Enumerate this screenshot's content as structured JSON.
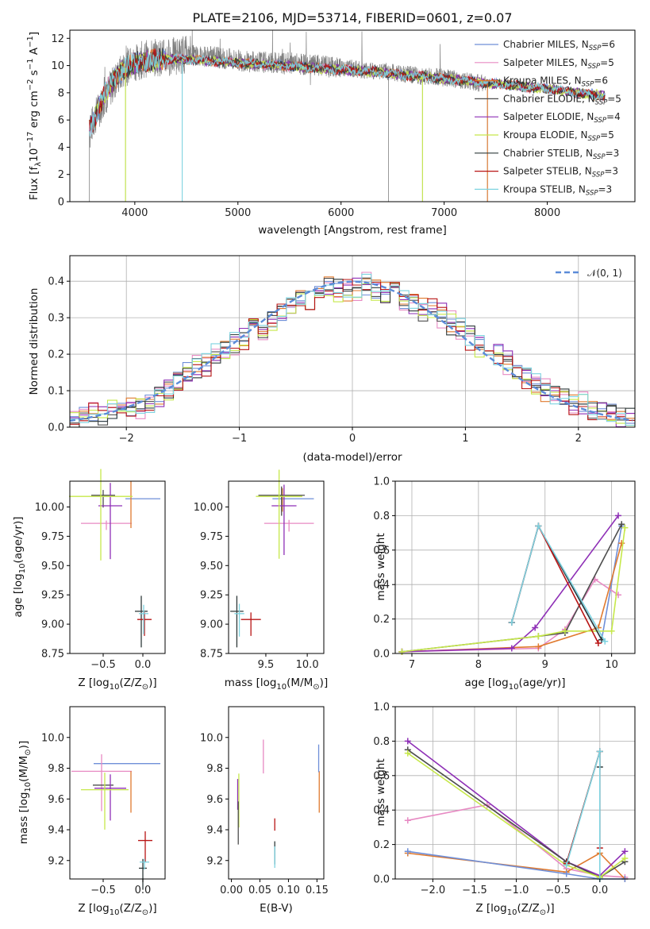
{
  "title": "PLATE=2106, MJD=53714, FIBERID=0601, z=0.07",
  "colors": {
    "Chabrier MILES": "#6f8fd8",
    "Salpeter MILES": "#e78ac3",
    "Kroupa MILES": "#e07a2f",
    "Chabrier ELODIE": "#4d4d4d",
    "Salpeter ELODIE": "#8e2fb6",
    "Kroupa ELODIE": "#c6e84a",
    "Chabrier STELIB": "#2f3a3a",
    "Salpeter STELIB": "#b81414",
    "Kroupa STELIB": "#7ed3e0",
    "data": "#808080"
  },
  "chart_data": [
    {
      "id": "spectrum",
      "type": "line",
      "xlabel": "wavelength [Angstrom, rest frame]",
      "ylabel": "Flux [f",
      "ylabel_sub": "λ",
      "ylabel_mid": "10",
      "ylabel_sup": "−17",
      "ylabel_end": " erg cm",
      "ylabel_sup2": "−2",
      "ylabel_end2": " s",
      "ylabel_sup3": "−1",
      "ylabel_end3": " A",
      "ylabel_sup4": "−1",
      "ylabel_close": "]",
      "xlim": [
        3370,
        8850
      ],
      "ylim": [
        0,
        12.6
      ],
      "xticks": [
        4000,
        5000,
        6000,
        7000,
        8000
      ],
      "yticks": [
        0,
        2,
        4,
        6,
        8,
        10,
        12
      ],
      "data_series": {
        "name": "data",
        "x": [
          3560,
          3600,
          3700,
          3800,
          3900,
          4000,
          4100,
          4200,
          4300,
          4400,
          4500,
          4600,
          4700,
          4800,
          4900,
          5000,
          5100,
          5200,
          5300,
          5400,
          5500,
          5600,
          5700,
          5800,
          5900,
          6000,
          6100,
          6200,
          6300,
          6400,
          6500,
          6600,
          6700,
          6800,
          6900,
          7000,
          7100,
          7200,
          7300,
          7400
        ],
        "y": [
          5.0,
          6.0,
          7.5,
          8.8,
          9.8,
          10.2,
          10.5,
          10.6,
          10.6,
          10.7,
          10.8,
          10.7,
          10.7,
          10.6,
          10.5,
          10.4,
          10.3,
          10.3,
          10.2,
          10.2,
          10.2,
          10.1,
          10.0,
          10.0,
          9.9,
          9.8,
          9.8,
          9.7,
          9.6,
          9.6,
          9.5,
          9.4,
          9.3,
          9.2,
          9.2,
          9.1,
          9.0,
          8.9,
          8.8,
          8.6
        ]
      },
      "model_continuum": {
        "x": [
          3560,
          3600,
          3700,
          3800,
          3900,
          4000,
          4200,
          4400,
          4600,
          4800,
          5000,
          5200,
          5400,
          5600,
          5800,
          6000,
          6200,
          6400,
          6600,
          6800,
          7000,
          7200,
          7400,
          7600,
          7800,
          8000,
          8200,
          8400,
          8550
        ],
        "y": [
          5.3,
          6.0,
          7.8,
          9.0,
          9.8,
          10.2,
          10.4,
          10.5,
          10.4,
          10.3,
          10.2,
          10.1,
          10.0,
          9.9,
          9.8,
          9.7,
          9.6,
          9.5,
          9.3,
          9.2,
          9.0,
          8.9,
          8.7,
          8.6,
          8.4,
          8.3,
          8.1,
          7.9,
          7.8
        ]
      },
      "legend": [
        {
          "label": "Chabrier MILES, N",
          "sub": "SSP",
          "value": "=6"
        },
        {
          "label": "Salpeter MILES, N",
          "sub": "SSP",
          "value": "=5"
        },
        {
          "label": "Kroupa MILES, N",
          "sub": "SSP",
          "value": "=6"
        },
        {
          "label": "Chabrier ELODIE, N",
          "sub": "SSP",
          "value": "=5"
        },
        {
          "label": "Salpeter ELODIE, N",
          "sub": "SSP",
          "value": "=4"
        },
        {
          "label": "Kroupa ELODIE, N",
          "sub": "SSP",
          "value": "=5"
        },
        {
          "label": "Chabrier STELIB, N",
          "sub": "SSP",
          "value": "=3"
        },
        {
          "label": "Salpeter STELIB, N",
          "sub": "SSP",
          "value": "=3"
        },
        {
          "label": "Kroupa STELIB, N",
          "sub": "SSP",
          "value": "=3"
        }
      ]
    },
    {
      "id": "residuals",
      "type": "histogram",
      "xlabel": "(data-model)/error",
      "ylabel": "Normed distribution",
      "xlim": [
        -2.5,
        2.5
      ],
      "ylim": [
        0,
        0.47
      ],
      "xticks": [
        -2,
        -1,
        0,
        1,
        2
      ],
      "yticks": [
        0.0,
        0.1,
        0.2,
        0.3,
        0.4
      ],
      "grid": true,
      "legend_label": "𝒩(0, 1)",
      "legend_position": "top-right",
      "bin_width": 0.1,
      "bin_start": -2.5,
      "series_values": [
        [
          0.02,
          0.03,
          0.03,
          0.04,
          0.04,
          0.05,
          0.05,
          0.06,
          0.07,
          0.08,
          0.1,
          0.13,
          0.15,
          0.16,
          0.18,
          0.2,
          0.21,
          0.23,
          0.25,
          0.26,
          0.28,
          0.3,
          0.32,
          0.34,
          0.35,
          0.37,
          0.38,
          0.39,
          0.38,
          0.37,
          0.38,
          0.39,
          0.38,
          0.37,
          0.36,
          0.35,
          0.34,
          0.33,
          0.32,
          0.31,
          0.28,
          0.27,
          0.25,
          0.23,
          0.21,
          0.2,
          0.18,
          0.15,
          0.14,
          0.12,
          0.1,
          0.09,
          0.08,
          0.07,
          0.06,
          0.05,
          0.05,
          0.04,
          0.03,
          0.03
        ],
        [
          0.02,
          0.03,
          0.04,
          0.03,
          0.05,
          0.04,
          0.06,
          0.05,
          0.07,
          0.09,
          0.1,
          0.12,
          0.14,
          0.17,
          0.16,
          0.19,
          0.21,
          0.22,
          0.24,
          0.27,
          0.26,
          0.29,
          0.31,
          0.33,
          0.36,
          0.35,
          0.37,
          0.38,
          0.36,
          0.38,
          0.37,
          0.4,
          0.37,
          0.36,
          0.37,
          0.34,
          0.35,
          0.32,
          0.33,
          0.3,
          0.29,
          0.26,
          0.24,
          0.22,
          0.22,
          0.19,
          0.17,
          0.16,
          0.13,
          0.12,
          0.11,
          0.08,
          0.09,
          0.06,
          0.07,
          0.05,
          0.04,
          0.04,
          0.03,
          0.02
        ]
      ]
    },
    {
      "id": "age-vs-Z",
      "type": "errorbar",
      "xlabel": "Z [log",
      "xlabel_sub": "10",
      "xlabel_end": "(Z/Z",
      "xlabel_sub2": "⊙",
      "xlabel_close": ")]",
      "ylabel": "age  [log",
      "ylabel_sub": "10",
      "ylabel_end": "(age/yr)]",
      "xlim": [
        -0.92,
        0.28
      ],
      "ylim": [
        8.75,
        10.22
      ],
      "xticks": [
        -0.5,
        0.0
      ],
      "yticks": [
        8.75,
        9.0,
        9.25,
        9.5,
        9.75,
        10.0
      ],
      "points": [
        {
          "s": "Chabrier MILES",
          "x": 0.0,
          "y": 10.07,
          "xerr": 0.22,
          "yerr": 0.0
        },
        {
          "s": "Salpeter MILES",
          "x": -0.46,
          "y": 9.86,
          "xerr": 0.32,
          "yerr": 0.08
        },
        {
          "s": "Kroupa MILES",
          "x": -0.15,
          "y": 10.1,
          "xerr": 0.0,
          "yerr": 0.4
        },
        {
          "s": "Chabrier ELODIE",
          "x": -0.5,
          "y": 10.1,
          "xerr": 0.15,
          "yerr": 0.15
        },
        {
          "s": "Salpeter ELODIE",
          "x": -0.41,
          "y": 10.01,
          "xerr": 0.15,
          "yerr": 0.65
        },
        {
          "s": "Kroupa ELODIE",
          "x": -0.53,
          "y": 10.09,
          "xerr": 0.4,
          "yerr": 0.78
        },
        {
          "s": "Chabrier STELIB",
          "x": -0.02,
          "y": 9.11,
          "xerr": 0.08,
          "yerr": 0.44
        },
        {
          "s": "Salpeter STELIB",
          "x": 0.02,
          "y": 9.04,
          "xerr": 0.09,
          "yerr": 0.2
        },
        {
          "s": "Kroupa STELIB",
          "x": 0.01,
          "y": 9.09,
          "xerr": 0.06,
          "yerr": 0.25
        }
      ]
    },
    {
      "id": "age-vs-mass",
      "type": "errorbar",
      "xlabel": "mass [log",
      "xlabel_sub": "10",
      "xlabel_end": "(M/M",
      "xlabel_sub2": "⊙",
      "xlabel_close": ")]",
      "xlim": [
        9.05,
        10.2
      ],
      "ylim": [
        8.75,
        10.22
      ],
      "xticks": [
        9.5,
        10.0
      ],
      "yticks": [
        8.75,
        9.0,
        9.25,
        9.5,
        9.75,
        10.0
      ],
      "points": [
        {
          "s": "Chabrier MILES",
          "x": 9.83,
          "y": 10.07,
          "xerr": 0.25,
          "yerr": 0.0
        },
        {
          "s": "Salpeter MILES",
          "x": 9.78,
          "y": 9.86,
          "xerr": 0.3,
          "yerr": 0.1
        },
        {
          "s": "Kroupa MILES",
          "x": 9.7,
          "y": 10.1,
          "xerr": 0.0,
          "yerr": 0.2
        },
        {
          "s": "Chabrier ELODIE",
          "x": 9.69,
          "y": 10.1,
          "xerr": 0.28,
          "yerr": 0.25
        },
        {
          "s": "Salpeter ELODIE",
          "x": 9.72,
          "y": 10.01,
          "xerr": 0.15,
          "yerr": 0.6
        },
        {
          "s": "Kroupa ELODIE",
          "x": 9.66,
          "y": 10.09,
          "xerr": 0.28,
          "yerr": 0.76
        },
        {
          "s": "Chabrier STELIB",
          "x": 9.15,
          "y": 9.11,
          "xerr": 0.08,
          "yerr": 0.44
        },
        {
          "s": "Salpeter STELIB",
          "x": 9.32,
          "y": 9.04,
          "xerr": 0.12,
          "yerr": 0.2
        },
        {
          "s": "Kroupa STELIB",
          "x": 9.18,
          "y": 9.09,
          "xerr": 0.06,
          "yerr": 0.28
        }
      ]
    },
    {
      "id": "weight-vs-age",
      "type": "line",
      "xlabel": "age  [log",
      "xlabel_sub": "10",
      "xlabel_end": "(age/yr)]",
      "ylabel": "mass weight",
      "xlim": [
        6.75,
        10.35
      ],
      "ylim": [
        0,
        1.0
      ],
      "xticks": [
        7,
        8,
        9,
        10
      ],
      "yticks": [
        0.0,
        0.2,
        0.4,
        0.6,
        0.8,
        1.0
      ],
      "grid": true,
      "series": [
        {
          "s": "Chabrier MILES",
          "x": [
            8.5,
            8.9,
            9.85,
            10.15
          ],
          "y": [
            0.18,
            0.74,
            0.08,
            0.74
          ]
        },
        {
          "s": "Salpeter MILES",
          "x": [
            6.85,
            8.9,
            9.3,
            9.75,
            10.1
          ],
          "y": [
            0.01,
            0.03,
            0.14,
            0.43,
            0.34
          ]
        },
        {
          "s": "Kroupa MILES",
          "x": [
            6.85,
            8.9,
            9.8,
            10.15
          ],
          "y": [
            0.01,
            0.04,
            0.15,
            0.64
          ]
        },
        {
          "s": "Chabrier ELODIE",
          "x": [
            6.85,
            8.9,
            9.3,
            10.15
          ],
          "y": [
            0.01,
            0.1,
            0.12,
            0.75
          ]
        },
        {
          "s": "Salpeter ELODIE",
          "x": [
            6.85,
            8.5,
            8.85,
            10.1
          ],
          "y": [
            0.01,
            0.03,
            0.15,
            0.8
          ]
        },
        {
          "s": "Kroupa ELODIE",
          "x": [
            6.85,
            8.9,
            9.3,
            10.0,
            10.2
          ],
          "y": [
            0.01,
            0.1,
            0.13,
            0.13,
            0.73
          ]
        },
        {
          "s": "Chabrier STELIB",
          "x": [
            8.5,
            8.9,
            9.85
          ],
          "y": [
            0.18,
            0.74,
            0.08
          ]
        },
        {
          "s": "Salpeter STELIB",
          "x": [
            8.5,
            8.9,
            9.8
          ],
          "y": [
            0.18,
            0.74,
            0.06
          ]
        },
        {
          "s": "Kroupa STELIB",
          "x": [
            8.5,
            8.9,
            9.9
          ],
          "y": [
            0.18,
            0.74,
            0.07
          ]
        }
      ]
    },
    {
      "id": "mass-vs-Z",
      "type": "errorbar",
      "xlabel": "Z [log",
      "xlabel_sub": "10",
      "xlabel_end": "(Z/Z",
      "xlabel_sub2": "⊙",
      "xlabel_close": ")]",
      "ylabel": "mass [log",
      "ylabel_sub": "10",
      "ylabel_end": "(M/M",
      "ylabel_sub2": "⊙",
      "ylabel_close": ")]",
      "xlim": [
        -0.92,
        0.28
      ],
      "ylim": [
        9.08,
        10.2
      ],
      "xticks": [
        -0.5,
        0.0
      ],
      "yticks": [
        9.2,
        9.4,
        9.6,
        9.8,
        10.0
      ],
      "points": [
        {
          "s": "Chabrier MILES",
          "x": -0.2,
          "y": 9.83,
          "xerr": 0.42,
          "yerr": 0.0
        },
        {
          "s": "Salpeter MILES",
          "x": -0.52,
          "y": 9.78,
          "xerr": 0.38,
          "yerr": 0.37
        },
        {
          "s": "Kroupa MILES",
          "x": -0.15,
          "y": 9.7,
          "xerr": 0.0,
          "yerr": 0.27
        },
        {
          "s": "Chabrier ELODIE",
          "x": -0.5,
          "y": 9.69,
          "xerr": 0.13,
          "yerr": 0.0
        },
        {
          "s": "Salpeter ELODIE",
          "x": -0.41,
          "y": 9.67,
          "xerr": 0.2,
          "yerr": 0.3
        },
        {
          "s": "Kroupa ELODIE",
          "x": -0.48,
          "y": 9.66,
          "xerr": 0.3,
          "yerr": 0.37
        },
        {
          "s": "Chabrier STELIB",
          "x": 0.0,
          "y": 9.15,
          "xerr": 0.05,
          "yerr": 0.2
        },
        {
          "s": "Salpeter STELIB",
          "x": 0.03,
          "y": 9.33,
          "xerr": 0.09,
          "yerr": 0.2
        },
        {
          "s": "Kroupa STELIB",
          "x": 0.02,
          "y": 9.19,
          "xerr": 0.06,
          "yerr": 0.07
        }
      ]
    },
    {
      "id": "mass-vs-EBV",
      "type": "errorbar",
      "xlabel": "E(B-V)",
      "xlim": [
        -0.005,
        0.162
      ],
      "ylim": [
        9.08,
        10.2
      ],
      "xticks": [
        0.0,
        0.05,
        0.1,
        0.15
      ],
      "yticks": [
        9.2,
        9.4,
        9.6,
        9.8,
        10.0
      ],
      "points": [
        {
          "s": "Salpeter ELODIE",
          "x": 0.011,
          "y": 9.67,
          "xerr": 0.0,
          "yerr": 0.2
        },
        {
          "s": "Kroupa ELODIE",
          "x": 0.013,
          "y": 9.66,
          "xerr": 0.0,
          "yerr": 0.35
        },
        {
          "s": "Chabrier ELODIE",
          "x": 0.012,
          "y": 9.5,
          "xerr": 0.0,
          "yerr": 0.28
        },
        {
          "s": "Salpeter MILES",
          "x": 0.056,
          "y": 9.92,
          "xerr": 0.0,
          "yerr": 0.22
        },
        {
          "s": "Chabrier STELIB",
          "x": 0.076,
          "y": 9.28,
          "xerr": 0.0,
          "yerr": 0.15
        },
        {
          "s": "Salpeter STELIB",
          "x": 0.076,
          "y": 9.45,
          "xerr": 0.0,
          "yerr": 0.08
        },
        {
          "s": "Kroupa STELIB",
          "x": 0.076,
          "y": 9.25,
          "xerr": 0.0,
          "yerr": 0.14
        },
        {
          "s": "Kroupa MILES",
          "x": 0.154,
          "y": 9.7,
          "xerr": 0.0,
          "yerr": 0.27
        },
        {
          "s": "Chabrier MILES",
          "x": 0.153,
          "y": 9.9,
          "xerr": 0.0,
          "yerr": 0.18
        }
      ]
    },
    {
      "id": "weight-vs-Z",
      "type": "line",
      "xlabel": "Z [log",
      "xlabel_sub": "10",
      "xlabel_end": "(Z/Z",
      "xlabel_sub2": "⊙",
      "xlabel_close": ")]",
      "ylabel": "mass weight",
      "xlim": [
        -2.45,
        0.42
      ],
      "ylim": [
        0,
        1.0
      ],
      "xticks": [
        -2.0,
        -1.5,
        -1.0,
        -0.5,
        0.0
      ],
      "yticks": [
        0.0,
        0.2,
        0.4,
        0.6,
        0.8,
        1.0
      ],
      "grid": true,
      "series": [
        {
          "s": "Salpeter MILES",
          "x": [
            -2.3,
            -1.35,
            -0.4,
            0.0,
            0.3
          ],
          "y": [
            0.34,
            0.43,
            0.06,
            0.02,
            0.01
          ]
        },
        {
          "s": "Kroupa MILES",
          "x": [
            -2.3,
            -0.4,
            0.0,
            0.3
          ],
          "y": [
            0.15,
            0.04,
            0.15,
            0.0
          ]
        },
        {
          "s": "Chabrier MILES",
          "x": [
            -2.3,
            -0.4,
            0.0,
            0.3
          ],
          "y": [
            0.16,
            0.03,
            0.0,
            0.0
          ]
        },
        {
          "s": "Salpeter ELODIE",
          "x": [
            -2.3,
            -0.4,
            0.0,
            0.3
          ],
          "y": [
            0.8,
            0.1,
            0.02,
            0.16
          ]
        },
        {
          "s": "Chabrier ELODIE",
          "x": [
            -2.3,
            -0.4,
            0.0,
            0.3
          ],
          "y": [
            0.75,
            0.1,
            0.01,
            0.1
          ]
        },
        {
          "s": "Kroupa ELODIE",
          "x": [
            -2.3,
            -0.4,
            0.0,
            0.3
          ],
          "y": [
            0.73,
            0.08,
            0.01,
            0.12
          ]
        },
        {
          "s": "Chabrier STELIB",
          "x": [
            -0.4,
            0.0,
            0.0
          ],
          "y": [
            0.09,
            0.74,
            0.65
          ]
        },
        {
          "s": "Salpeter STELIB",
          "x": [
            -0.4,
            0.0,
            0.0
          ],
          "y": [
            0.09,
            0.74,
            0.18
          ]
        },
        {
          "s": "Kroupa STELIB",
          "x": [
            -0.4,
            0.0,
            0.0
          ],
          "y": [
            0.08,
            0.74,
            0.0
          ]
        }
      ]
    }
  ]
}
